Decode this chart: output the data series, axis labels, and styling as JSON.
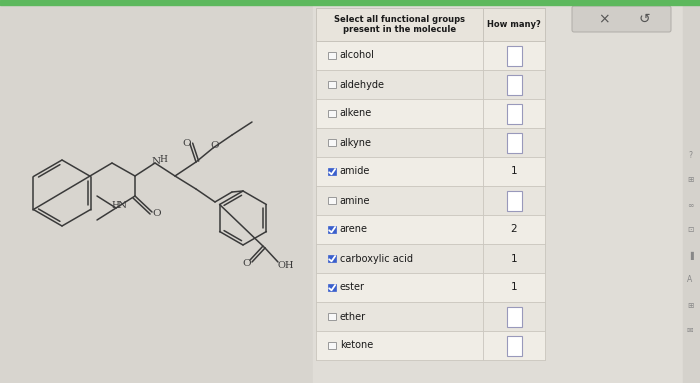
{
  "bg_color": "#e2dfd9",
  "table_bg": "#f0ede6",
  "header_bg": "#e8e4dc",
  "border_color": "#c8c4bc",
  "checked_color": "#3a5fcd",
  "text_color": "#1a1a1a",
  "header_text": "Select all functional groups\npresent in the molecule",
  "col2_header": "How many?",
  "green_bar": "#5db85d",
  "btn_bg": "#d0cdc8",
  "btn_border": "#b0ada8",
  "right_area_bg": "#e0ddd7",
  "rows": [
    {
      "label": "alcohol",
      "checked": false,
      "value": null
    },
    {
      "label": "aldehyde",
      "checked": false,
      "value": null
    },
    {
      "label": "alkene",
      "checked": false,
      "value": null
    },
    {
      "label": "alkyne",
      "checked": false,
      "value": null
    },
    {
      "label": "amide",
      "checked": true,
      "value": "1"
    },
    {
      "label": "amine",
      "checked": false,
      "value": null
    },
    {
      "label": "arene",
      "checked": true,
      "value": "2"
    },
    {
      "label": "carboxylic acid",
      "checked": true,
      "value": "1"
    },
    {
      "label": "ester",
      "checked": true,
      "value": "1"
    },
    {
      "label": "ether",
      "checked": false,
      "value": null
    },
    {
      "label": "ketone",
      "checked": false,
      "value": null
    }
  ],
  "mol_bg": "#d8d5cf",
  "lc": "#3a3a3a",
  "lw": 1.1
}
